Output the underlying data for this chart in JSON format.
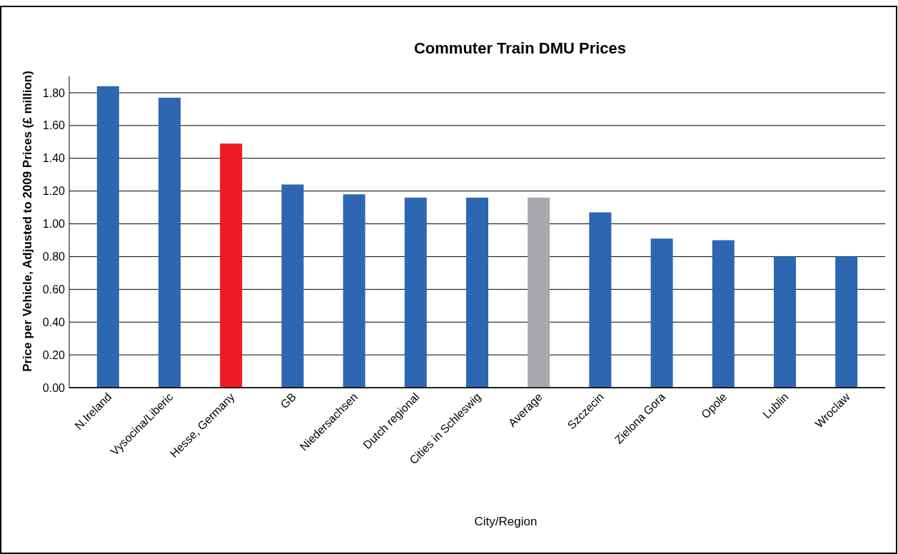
{
  "chart_data": {
    "type": "bar",
    "title": "Commuter Train DMU Prices",
    "xlabel": "City/Region",
    "ylabel": "Price per Vehicle, Adjusted to 2009 Prices (£ million)",
    "categories": [
      "N.Ireland",
      "Vysocina/Liberic",
      "Hesse, Germany",
      "GB",
      "Niedersachsen",
      "Dutch regional",
      "Cities in Schleswig",
      "Average",
      "Szczecin",
      "Zielona Gora",
      "Opole",
      "Lublin",
      "Wroclaw"
    ],
    "values": [
      1.84,
      1.77,
      1.49,
      1.24,
      1.18,
      1.16,
      1.16,
      1.16,
      1.07,
      0.91,
      0.9,
      0.8,
      0.8
    ],
    "colors": [
      "#2e67b1",
      "#2e67b1",
      "#ed1c24",
      "#2e67b1",
      "#2e67b1",
      "#2e67b1",
      "#2e67b1",
      "#a7a9ac",
      "#2e67b1",
      "#2e67b1",
      "#2e67b1",
      "#2e67b1",
      "#2e67b1"
    ],
    "ylim": [
      0,
      1.9
    ],
    "yticks": [
      {
        "value": 0,
        "label": "0.00"
      },
      {
        "value": 0.2,
        "label": "0.20"
      },
      {
        "value": 0.4,
        "label": "0.40"
      },
      {
        "value": 0.6,
        "label": "0.60"
      },
      {
        "value": 0.8,
        "label": "0.80"
      },
      {
        "value": 1,
        "label": "1.00"
      },
      {
        "value": 1.2,
        "label": "1.20"
      },
      {
        "value": 1.4,
        "label": "1.40"
      },
      {
        "value": 1.6,
        "label": "1.60"
      },
      {
        "value": 1.8,
        "label": "1.80"
      }
    ],
    "grid": "y"
  }
}
